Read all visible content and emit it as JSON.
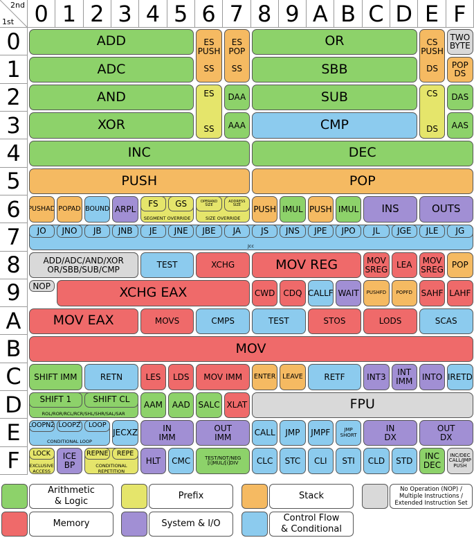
{
  "corner": {
    "second": "2nd",
    "first": "1st"
  },
  "col_headers": [
    "0",
    "1",
    "2",
    "3",
    "4",
    "5",
    "6",
    "7",
    "8",
    "9",
    "A",
    "B",
    "C",
    "D",
    "E",
    "F"
  ],
  "row_headers": [
    "0",
    "1",
    "2",
    "3",
    "4",
    "5",
    "6",
    "7",
    "8",
    "9",
    "A",
    "B",
    "C",
    "D",
    "E",
    "F"
  ],
  "colors": {
    "arith": "#8dd26a",
    "memory": "#ef6a6a",
    "prefix": "#e5e56b",
    "system": "#a18fd4",
    "stack": "#f5ba62",
    "control": "#8ccbee",
    "nop": "#d9d9d9"
  },
  "cells": [
    {
      "r": 0,
      "c": 0,
      "w": 6,
      "h": 1,
      "t": "arith",
      "label": "ADD",
      "sz": "fl"
    },
    {
      "r": 0,
      "c": 6,
      "w": 1,
      "h": 2,
      "t": "stack",
      "label": "ES\nPUSH\n\nSS",
      "sz": "fs"
    },
    {
      "r": 0,
      "c": 7,
      "w": 1,
      "h": 2,
      "t": "stack",
      "label": "ES\nPOP\n\nSS",
      "sz": "fs"
    },
    {
      "r": 0,
      "c": 8,
      "w": 6,
      "h": 1,
      "t": "arith",
      "label": "OR",
      "sz": "fl"
    },
    {
      "r": 0,
      "c": 14,
      "w": 1,
      "h": 2,
      "t": "stack",
      "label": "CS\nPUSH\n\nDS",
      "sz": "fs"
    },
    {
      "r": 0,
      "c": 15,
      "w": 1,
      "h": 1,
      "t": "nop",
      "label": "TWO\nBYTE",
      "sz": "fs"
    },
    {
      "r": 1,
      "c": 0,
      "w": 6,
      "h": 1,
      "t": "arith",
      "label": "ADC",
      "sz": "fl"
    },
    {
      "r": 1,
      "c": 8,
      "w": 6,
      "h": 1,
      "t": "arith",
      "label": "SBB",
      "sz": "fl"
    },
    {
      "r": 1,
      "c": 15,
      "w": 1,
      "h": 1,
      "t": "stack",
      "label": "POP\nDS",
      "sz": "fs"
    },
    {
      "r": 2,
      "c": 0,
      "w": 6,
      "h": 1,
      "t": "arith",
      "label": "AND",
      "sz": "fl"
    },
    {
      "r": 2,
      "c": 6,
      "w": 1,
      "h": 2,
      "t": "prefix",
      "label": "ES\n\n\n\nSS",
      "sz": "fs"
    },
    {
      "r": 2,
      "c": 7,
      "w": 1,
      "h": 1,
      "t": "arith",
      "label": "DAA",
      "sz": "fs"
    },
    {
      "r": 2,
      "c": 8,
      "w": 6,
      "h": 1,
      "t": "arith",
      "label": "SUB",
      "sz": "fl"
    },
    {
      "r": 2,
      "c": 14,
      "w": 1,
      "h": 2,
      "t": "prefix",
      "label": "CS\n\n\n\nDS",
      "sz": "fs"
    },
    {
      "r": 2,
      "c": 15,
      "w": 1,
      "h": 1,
      "t": "arith",
      "label": "DAS",
      "sz": "fs"
    },
    {
      "r": 3,
      "c": 0,
      "w": 6,
      "h": 1,
      "t": "arith",
      "label": "XOR",
      "sz": "fl"
    },
    {
      "r": 3,
      "c": 7,
      "w": 1,
      "h": 1,
      "t": "arith",
      "label": "AAA",
      "sz": "fs"
    },
    {
      "r": 3,
      "c": 8,
      "w": 6,
      "h": 1,
      "t": "control",
      "label": "CMP",
      "sz": "fl"
    },
    {
      "r": 3,
      "c": 15,
      "w": 1,
      "h": 1,
      "t": "arith",
      "label": "AAS",
      "sz": "fs"
    },
    {
      "r": 4,
      "c": 0,
      "w": 8,
      "h": 1,
      "t": "arith",
      "label": "INC",
      "sz": "fl"
    },
    {
      "r": 4,
      "c": 8,
      "w": 8,
      "h": 1,
      "t": "arith",
      "label": "DEC",
      "sz": "fl"
    },
    {
      "r": 5,
      "c": 0,
      "w": 8,
      "h": 1,
      "t": "stack",
      "label": "PUSH",
      "sz": "fl"
    },
    {
      "r": 5,
      "c": 8,
      "w": 8,
      "h": 1,
      "t": "stack",
      "label": "POP",
      "sz": "fl"
    },
    {
      "r": 6,
      "c": 0,
      "w": 1,
      "h": 1,
      "t": "stack",
      "label": "PUSHAD",
      "sz": "fxs"
    },
    {
      "r": 6,
      "c": 1,
      "w": 1,
      "h": 1,
      "t": "stack",
      "label": "POPAD",
      "sz": "fxs"
    },
    {
      "r": 6,
      "c": 2,
      "w": 1,
      "h": 1,
      "t": "control",
      "label": "BOUND",
      "sz": "fxs"
    },
    {
      "r": 6,
      "c": 3,
      "w": 1,
      "h": 1,
      "t": "system",
      "label": "ARPL",
      "sz": "fs"
    },
    {
      "r": 6,
      "c": 4,
      "w": 1,
      "h": 0.62,
      "t": "prefix",
      "label": "FS",
      "sz": "fs"
    },
    {
      "r": 6,
      "c": 5,
      "w": 1,
      "h": 0.62,
      "t": "prefix",
      "label": "GS",
      "sz": "fs"
    },
    {
      "r": 6,
      "c": 6,
      "w": 1,
      "h": 0.62,
      "t": "prefix",
      "label": "OPERAND\nSIZE",
      "sz": "ftiny"
    },
    {
      "r": 6,
      "c": 7,
      "w": 1,
      "h": 0.62,
      "t": "prefix",
      "label": "ADDRESS\nSIZE",
      "sz": "ftiny"
    },
    {
      "r": 6,
      "c": 8,
      "w": 1,
      "h": 1,
      "t": "stack",
      "label": "PUSH",
      "sz": "fs"
    },
    {
      "r": 6,
      "c": 9,
      "w": 1,
      "h": 1,
      "t": "arith",
      "label": "IMUL",
      "sz": "fs"
    },
    {
      "r": 6,
      "c": 10,
      "w": 1,
      "h": 1,
      "t": "stack",
      "label": "PUSH",
      "sz": "fs"
    },
    {
      "r": 6,
      "c": 11,
      "w": 1,
      "h": 1,
      "t": "arith",
      "label": "IMUL",
      "sz": "fs"
    },
    {
      "r": 6,
      "c": 12,
      "w": 2,
      "h": 1,
      "t": "system",
      "label": "INS",
      "sz": "fm"
    },
    {
      "r": 6,
      "c": 14,
      "w": 2,
      "h": 1,
      "t": "system",
      "label": "OUTS",
      "sz": "fm"
    },
    {
      "r": 7,
      "c": 0,
      "w": 1,
      "h": 0.55,
      "t": "control",
      "label": "JO",
      "sz": "fs"
    },
    {
      "r": 7,
      "c": 1,
      "w": 1,
      "h": 0.55,
      "t": "control",
      "label": "JNO",
      "sz": "fs"
    },
    {
      "r": 7,
      "c": 2,
      "w": 1,
      "h": 0.55,
      "t": "control",
      "label": "JB",
      "sz": "fs"
    },
    {
      "r": 7,
      "c": 3,
      "w": 1,
      "h": 0.55,
      "t": "control",
      "label": "JNB",
      "sz": "fs"
    },
    {
      "r": 7,
      "c": 4,
      "w": 1,
      "h": 0.55,
      "t": "control",
      "label": "JE",
      "sz": "fs"
    },
    {
      "r": 7,
      "c": 5,
      "w": 1,
      "h": 0.55,
      "t": "control",
      "label": "JNE",
      "sz": "fs"
    },
    {
      "r": 7,
      "c": 6,
      "w": 1,
      "h": 0.55,
      "t": "control",
      "label": "JBE",
      "sz": "fs"
    },
    {
      "r": 7,
      "c": 7,
      "w": 1,
      "h": 0.55,
      "t": "control",
      "label": "JA",
      "sz": "fs"
    },
    {
      "r": 7,
      "c": 8,
      "w": 1,
      "h": 0.55,
      "t": "control",
      "label": "JS",
      "sz": "fs"
    },
    {
      "r": 7,
      "c": 9,
      "w": 1,
      "h": 0.55,
      "t": "control",
      "label": "JNS",
      "sz": "fs"
    },
    {
      "r": 7,
      "c": 10,
      "w": 1,
      "h": 0.55,
      "t": "control",
      "label": "JPE",
      "sz": "fs"
    },
    {
      "r": 7,
      "c": 11,
      "w": 1,
      "h": 0.55,
      "t": "control",
      "label": "JPO",
      "sz": "fs"
    },
    {
      "r": 7,
      "c": 12,
      "w": 1,
      "h": 0.55,
      "t": "control",
      "label": "JL",
      "sz": "fs"
    },
    {
      "r": 7,
      "c": 13,
      "w": 1,
      "h": 0.55,
      "t": "control",
      "label": "JGE",
      "sz": "fs"
    },
    {
      "r": 7,
      "c": 14,
      "w": 1,
      "h": 0.55,
      "t": "control",
      "label": "JLE",
      "sz": "fs"
    },
    {
      "r": 7,
      "c": 15,
      "w": 1,
      "h": 0.55,
      "t": "control",
      "label": "JG",
      "sz": "fs"
    },
    {
      "r": 8,
      "c": 0,
      "w": 4,
      "h": 1,
      "t": "nop",
      "label": "ADD/ADC/AND/XOR\nOR/SBB/SUB/CMP",
      "sz": "fs"
    },
    {
      "r": 8,
      "c": 4,
      "w": 2,
      "h": 1,
      "t": "control",
      "label": "TEST",
      "sz": "fs"
    },
    {
      "r": 8,
      "c": 6,
      "w": 2,
      "h": 1,
      "t": "memory",
      "label": "XCHG",
      "sz": "fs"
    },
    {
      "r": 8,
      "c": 8,
      "w": 4,
      "h": 1,
      "t": "memory",
      "label": "MOV REG",
      "sz": "fl"
    },
    {
      "r": 8,
      "c": 12,
      "w": 1,
      "h": 1,
      "t": "memory",
      "label": "MOV\nSREG",
      "sz": "fs"
    },
    {
      "r": 8,
      "c": 13,
      "w": 1,
      "h": 1,
      "t": "memory",
      "label": "LEA",
      "sz": "fs"
    },
    {
      "r": 8,
      "c": 14,
      "w": 1,
      "h": 1,
      "t": "memory",
      "label": "MOV\nSREG",
      "sz": "fs"
    },
    {
      "r": 8,
      "c": 15,
      "w": 1,
      "h": 1,
      "t": "stack",
      "label": "POP",
      "sz": "fs"
    },
    {
      "r": 9,
      "c": 0,
      "w": 1,
      "h": 0.5,
      "t": "nop",
      "label": "NOP",
      "sz": "fs"
    },
    {
      "r": 9,
      "c": 1,
      "w": 7,
      "h": 1,
      "t": "memory",
      "label": "XCHG EAX",
      "sz": "fl"
    },
    {
      "r": 9,
      "c": 8,
      "w": 1,
      "h": 1,
      "t": "memory",
      "label": "CWD",
      "sz": "fs"
    },
    {
      "r": 9,
      "c": 9,
      "w": 1,
      "h": 1,
      "t": "memory",
      "label": "CDQ",
      "sz": "fs"
    },
    {
      "r": 9,
      "c": 10,
      "w": 1,
      "h": 1,
      "t": "control",
      "label": "CALLF",
      "sz": "fs"
    },
    {
      "r": 9,
      "c": 11,
      "w": 1,
      "h": 1,
      "t": "system",
      "label": "WAIT",
      "sz": "fs"
    },
    {
      "r": 9,
      "c": 12,
      "w": 1,
      "h": 1,
      "t": "stack",
      "label": "PUSHFD",
      "sz": "fxxs"
    },
    {
      "r": 9,
      "c": 13,
      "w": 1,
      "h": 1,
      "t": "stack",
      "label": "POPFD",
      "sz": "fxxs"
    },
    {
      "r": 9,
      "c": 14,
      "w": 1,
      "h": 1,
      "t": "memory",
      "label": "SAHF",
      "sz": "fs"
    },
    {
      "r": 9,
      "c": 15,
      "w": 1,
      "h": 1,
      "t": "memory",
      "label": "LAHF",
      "sz": "fs"
    },
    {
      "r": 10,
      "c": 0,
      "w": 4,
      "h": 1,
      "t": "memory",
      "label": "MOV EAX",
      "sz": "fl"
    },
    {
      "r": 10,
      "c": 4,
      "w": 2,
      "h": 1,
      "t": "memory",
      "label": "MOVS",
      "sz": "fs"
    },
    {
      "r": 10,
      "c": 6,
      "w": 2,
      "h": 1,
      "t": "control",
      "label": "CMPS",
      "sz": "fs"
    },
    {
      "r": 10,
      "c": 8,
      "w": 2,
      "h": 1,
      "t": "control",
      "label": "TEST",
      "sz": "fs"
    },
    {
      "r": 10,
      "c": 10,
      "w": 2,
      "h": 1,
      "t": "memory",
      "label": "STOS",
      "sz": "fs"
    },
    {
      "r": 10,
      "c": 12,
      "w": 2,
      "h": 1,
      "t": "memory",
      "label": "LODS",
      "sz": "fs"
    },
    {
      "r": 10,
      "c": 14,
      "w": 2,
      "h": 1,
      "t": "control",
      "label": "SCAS",
      "sz": "fs"
    },
    {
      "r": 11,
      "c": 0,
      "w": 16,
      "h": 1,
      "t": "memory",
      "label": "MOV",
      "sz": "fl"
    },
    {
      "r": 12,
      "c": 0,
      "w": 2,
      "h": 1,
      "t": "arith",
      "label": "SHIFT IMM",
      "sz": "fs"
    },
    {
      "r": 12,
      "c": 2,
      "w": 2,
      "h": 1,
      "t": "control",
      "label": "RETN",
      "sz": "fs"
    },
    {
      "r": 12,
      "c": 4,
      "w": 1,
      "h": 1,
      "t": "memory",
      "label": "LES",
      "sz": "fs"
    },
    {
      "r": 12,
      "c": 5,
      "w": 1,
      "h": 1,
      "t": "memory",
      "label": "LDS",
      "sz": "fs"
    },
    {
      "r": 12,
      "c": 6,
      "w": 2,
      "h": 1,
      "t": "memory",
      "label": "MOV IMM",
      "sz": "fs"
    },
    {
      "r": 12,
      "c": 8,
      "w": 1,
      "h": 1,
      "t": "stack",
      "label": "ENTER",
      "sz": "fxs"
    },
    {
      "r": 12,
      "c": 9,
      "w": 1,
      "h": 1,
      "t": "stack",
      "label": "LEAVE",
      "sz": "fxs"
    },
    {
      "r": 12,
      "c": 10,
      "w": 2,
      "h": 1,
      "t": "control",
      "label": "RETF",
      "sz": "fs"
    },
    {
      "r": 12,
      "c": 12,
      "w": 1,
      "h": 1,
      "t": "system",
      "label": "INT3",
      "sz": "fs"
    },
    {
      "r": 12,
      "c": 13,
      "w": 1,
      "h": 1,
      "t": "system",
      "label": "INT\nIMM",
      "sz": "fs"
    },
    {
      "r": 12,
      "c": 14,
      "w": 1,
      "h": 1,
      "t": "system",
      "label": "INTO",
      "sz": "fs"
    },
    {
      "r": 12,
      "c": 15,
      "w": 1,
      "h": 1,
      "t": "control",
      "label": "IRETD",
      "sz": "fs"
    },
    {
      "r": 13,
      "c": 0,
      "w": 2,
      "h": 0.62,
      "t": "arith",
      "label": "SHIFT 1",
      "sz": "fs"
    },
    {
      "r": 13,
      "c": 2,
      "w": 2,
      "h": 0.62,
      "t": "arith",
      "label": "SHIFT CL",
      "sz": "fs"
    },
    {
      "r": 13,
      "c": 4,
      "w": 1,
      "h": 1,
      "t": "arith",
      "label": "AAM",
      "sz": "fs"
    },
    {
      "r": 13,
      "c": 5,
      "w": 1,
      "h": 1,
      "t": "arith",
      "label": "AAD",
      "sz": "fs"
    },
    {
      "r": 13,
      "c": 6,
      "w": 1,
      "h": 1,
      "t": "arith",
      "label": "SALC",
      "sz": "fs"
    },
    {
      "r": 13,
      "c": 7,
      "w": 1,
      "h": 1,
      "t": "memory",
      "label": "XLAT",
      "sz": "fs"
    },
    {
      "r": 13,
      "c": 8,
      "w": 8,
      "h": 1,
      "t": "nop",
      "label": "FPU",
      "sz": "fl"
    },
    {
      "r": 14,
      "c": 0,
      "w": 1,
      "h": 0.5,
      "t": "control",
      "label": "LOOPNZ",
      "sz": "fxs"
    },
    {
      "r": 14,
      "c": 1,
      "w": 1,
      "h": 0.5,
      "t": "control",
      "label": "LOOPZ",
      "sz": "fxs"
    },
    {
      "r": 14,
      "c": 2,
      "w": 1,
      "h": 0.5,
      "t": "control",
      "label": "LOOP",
      "sz": "fxs"
    },
    {
      "r": 14,
      "c": 3,
      "w": 1,
      "h": 1,
      "t": "control",
      "label": "JECXZ",
      "sz": "fs"
    },
    {
      "r": 14,
      "c": 4,
      "w": 2,
      "h": 1,
      "t": "system",
      "label": "IN\nIMM",
      "sz": "fs"
    },
    {
      "r": 14,
      "c": 6,
      "w": 2,
      "h": 1,
      "t": "system",
      "label": "OUT\nIMM",
      "sz": "fs"
    },
    {
      "r": 14,
      "c": 8,
      "w": 1,
      "h": 1,
      "t": "control",
      "label": "CALL",
      "sz": "fs"
    },
    {
      "r": 14,
      "c": 9,
      "w": 1,
      "h": 1,
      "t": "control",
      "label": "JMP",
      "sz": "fs"
    },
    {
      "r": 14,
      "c": 10,
      "w": 1,
      "h": 1,
      "t": "control",
      "label": "JMPF",
      "sz": "fs"
    },
    {
      "r": 14,
      "c": 11,
      "w": 1,
      "h": 1,
      "t": "control",
      "label": "JMP\nSHORT",
      "sz": "fxxs"
    },
    {
      "r": 14,
      "c": 12,
      "w": 2,
      "h": 1,
      "t": "system",
      "label": "IN\nDX",
      "sz": "fs"
    },
    {
      "r": 14,
      "c": 14,
      "w": 2,
      "h": 1,
      "t": "system",
      "label": "OUT\nDX",
      "sz": "fs"
    },
    {
      "r": 15,
      "c": 0,
      "w": 1,
      "h": 0.5,
      "t": "prefix",
      "label": "LOCK",
      "sz": "fxs"
    },
    {
      "r": 15,
      "c": 1,
      "w": 1,
      "h": 1,
      "t": "system",
      "label": "ICE\nBP",
      "sz": "fs"
    },
    {
      "r": 15,
      "c": 2,
      "w": 1,
      "h": 0.5,
      "t": "prefix",
      "label": "REPNE",
      "sz": "fxs"
    },
    {
      "r": 15,
      "c": 3,
      "w": 1,
      "h": 0.5,
      "t": "prefix",
      "label": "REPE",
      "sz": "fxs"
    },
    {
      "r": 15,
      "c": 4,
      "w": 1,
      "h": 1,
      "t": "system",
      "label": "HLT",
      "sz": "fs"
    },
    {
      "r": 15,
      "c": 5,
      "w": 1,
      "h": 1,
      "t": "control",
      "label": "CMC",
      "sz": "fs"
    },
    {
      "r": 15,
      "c": 6,
      "w": 2,
      "h": 1,
      "t": "arith",
      "label": "TEST/NOT/NEG\n[i]MUL/[i]DIV",
      "sz": "fxxs"
    },
    {
      "r": 15,
      "c": 8,
      "w": 1,
      "h": 1,
      "t": "control",
      "label": "CLC",
      "sz": "fs"
    },
    {
      "r": 15,
      "c": 9,
      "w": 1,
      "h": 1,
      "t": "control",
      "label": "STC",
      "sz": "fs"
    },
    {
      "r": 15,
      "c": 10,
      "w": 1,
      "h": 1,
      "t": "control",
      "label": "CLI",
      "sz": "fs"
    },
    {
      "r": 15,
      "c": 11,
      "w": 1,
      "h": 1,
      "t": "control",
      "label": "STI",
      "sz": "fs"
    },
    {
      "r": 15,
      "c": 12,
      "w": 1,
      "h": 1,
      "t": "control",
      "label": "CLD",
      "sz": "fs"
    },
    {
      "r": 15,
      "c": 13,
      "w": 1,
      "h": 1,
      "t": "control",
      "label": "STD",
      "sz": "fs"
    },
    {
      "r": 15,
      "c": 14,
      "w": 1,
      "h": 1,
      "t": "arith",
      "label": "INC\nDEC",
      "sz": "fs"
    },
    {
      "r": 15,
      "c": 15,
      "w": 1,
      "h": 1,
      "t": "nop",
      "label": "INC/DEC\nCALL/JMP\nPUSH",
      "sz": "fxxs"
    }
  ],
  "groups": [
    {
      "r": 2,
      "c": 6,
      "w": 1,
      "h": 2,
      "t": "prefix",
      "label": "SEGMENT\nOVERRIDE",
      "sub": true
    },
    {
      "r": 2,
      "c": 14,
      "w": 1,
      "h": 2,
      "t": "prefix",
      "label": "SEGMENT\nOVERRIDE",
      "sub": true
    },
    {
      "r": 6,
      "c": 4,
      "w": 2,
      "h": 1,
      "t": "prefix",
      "label": "SEGMENT OVERRIDE"
    },
    {
      "r": 6,
      "c": 6,
      "w": 2,
      "h": 1,
      "t": "prefix",
      "label": "SIZE OVERRIDE"
    },
    {
      "r": 7,
      "c": 0,
      "w": 16,
      "h": 1,
      "t": "control",
      "label": "Jcc"
    },
    {
      "r": 8,
      "c": 0,
      "w": 4,
      "h": 1,
      "t": "nop",
      "label": ""
    },
    {
      "r": 9,
      "c": 0,
      "w": 1,
      "h": 1,
      "t": "none",
      "label": ""
    },
    {
      "r": 13,
      "c": 0,
      "w": 4,
      "h": 1,
      "t": "arith",
      "label": "ROL/ROR/RCL/RCR/SHL/SHR/SAL/SAR"
    },
    {
      "r": 14,
      "c": 0,
      "w": 3,
      "h": 1,
      "t": "control",
      "label": "CONDITIONAL LOOP"
    },
    {
      "r": 15,
      "c": 0,
      "w": 1,
      "h": 1,
      "t": "prefix",
      "label": "EXCLUSIVE\nACCESS"
    },
    {
      "r": 15,
      "c": 2,
      "w": 2,
      "h": 1,
      "t": "prefix",
      "label": "CONDITIONAL\nREPETITION"
    }
  ],
  "legend": [
    {
      "t": "arith",
      "label": "Arithmetic\n& Logic"
    },
    {
      "t": "prefix",
      "label": "Prefix"
    },
    {
      "t": "stack",
      "label": "Stack"
    },
    {
      "t": "nop",
      "label": "No Operation (NOP) /\nMultiple Instructions /\nExtended Instruction Set"
    },
    {
      "t": "memory",
      "label": "Memory"
    },
    {
      "t": "system",
      "label": "System & I/O"
    },
    {
      "t": "control",
      "label": "Control Flow\n& Conditional"
    }
  ]
}
